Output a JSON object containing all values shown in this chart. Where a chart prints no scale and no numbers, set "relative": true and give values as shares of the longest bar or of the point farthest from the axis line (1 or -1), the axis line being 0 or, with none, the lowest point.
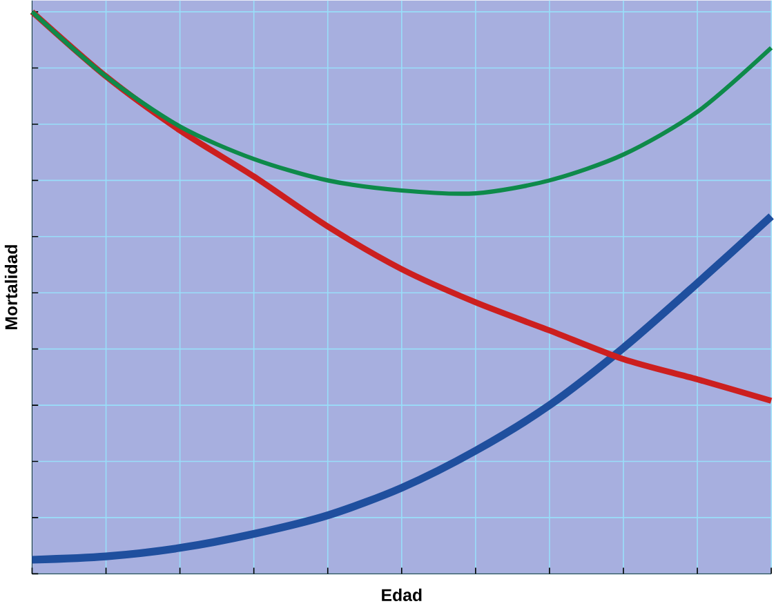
{
  "chart_data": {
    "type": "line",
    "relative": true,
    "xlabel": "Edad",
    "ylabel": "Mortalidad",
    "grid": true,
    "marker": "none",
    "line_style": "solid",
    "categories": [
      null,
      null,
      null,
      null,
      null,
      null,
      null,
      null,
      null,
      null,
      null
    ],
    "series": [
      {
        "color": "#0e8a4a",
        "values": [
          1,
          0.885,
          0.796,
          0.738,
          0.7,
          0.682,
          0.677,
          0.7,
          0.746,
          0.822,
          0.936
        ]
      },
      {
        "color": "#cc1f1f",
        "values": [
          1,
          0.885,
          0.789,
          0.707,
          0.618,
          0.542,
          0.483,
          0.433,
          0.382,
          0.346,
          0.308
        ]
      },
      {
        "color": "#1f4f9e",
        "values": [
          0.025,
          0.031,
          0.046,
          0.071,
          0.104,
          0.153,
          0.219,
          0.3,
          0.402,
          0.517,
          0.636
        ]
      }
    ]
  }
}
